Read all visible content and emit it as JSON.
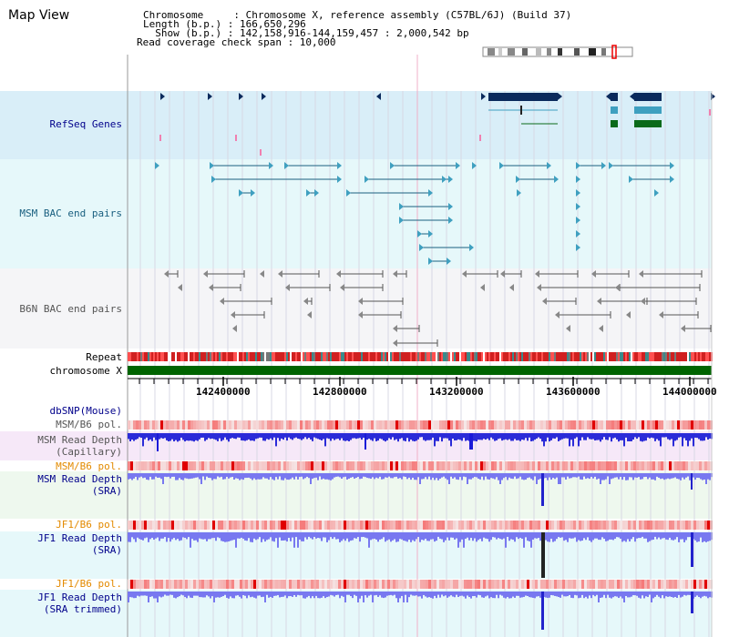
{
  "app": {
    "title": "Map View"
  },
  "info": {
    "chromosome": "Chromosome     : Chromosome X, reference assembly (C57BL/6J) (Build 37)",
    "length": "Length (b.p.) : 166,650,296",
    "show": "  Show (b.p.) : 142,158,916-144,159,457 : 2,000,542 bp",
    "coverage": "Read coverage check span : 10,000"
  },
  "tracks": {
    "refseq": "RefSeq Genes",
    "msm_bac": "MSM BAC end pairs",
    "b6n_bac": "B6N BAC end pairs",
    "repeat": "Repeat",
    "chromosome": "chromosome X",
    "dbsnp": "dbSNP(Mouse)",
    "msm_b6_pol_1": "MSM/B6 pol.",
    "msm_depth_cap_1": "MSM Read Depth",
    "msm_depth_cap_2": "(Capillary)",
    "msm_b6_pol_2": "MSM/B6 pol.",
    "msm_depth_sra_1": "MSM Read Depth",
    "msm_depth_sra_2": "(SRA)",
    "jf1_b6_pol_1": "JF1/B6 pol.",
    "jf1_depth_sra_1": "JF1 Read Depth",
    "jf1_depth_sra_2": "(SRA)",
    "jf1_b6_pol_2": "JF1/B6 pol.",
    "jf1_depth_trim_1": "JF1 Read Depth",
    "jf1_depth_trim_2": "(SRA trimmed)"
  },
  "axis": {
    "ticks": [
      "142400000",
      "142800000",
      "143200000",
      "143600000",
      "144000000"
    ]
  },
  "colors": {
    "refseq_bg": "#d9eef8",
    "msm_bac_bg": "#e6f8fa",
    "b6n_bac_bg": "#f5f5f7",
    "depth_cap_bg": "#f6e8f8",
    "depth_sra_bg": "#eef8ee",
    "chromosome_bar": "#006400",
    "gene_dark": "#0a2a5c",
    "gene_teal": "#3fa0c0",
    "gene_green": "#0a6a1a",
    "depth_blue": "#2b2bd8",
    "depth_light": "#7878f0"
  }
}
